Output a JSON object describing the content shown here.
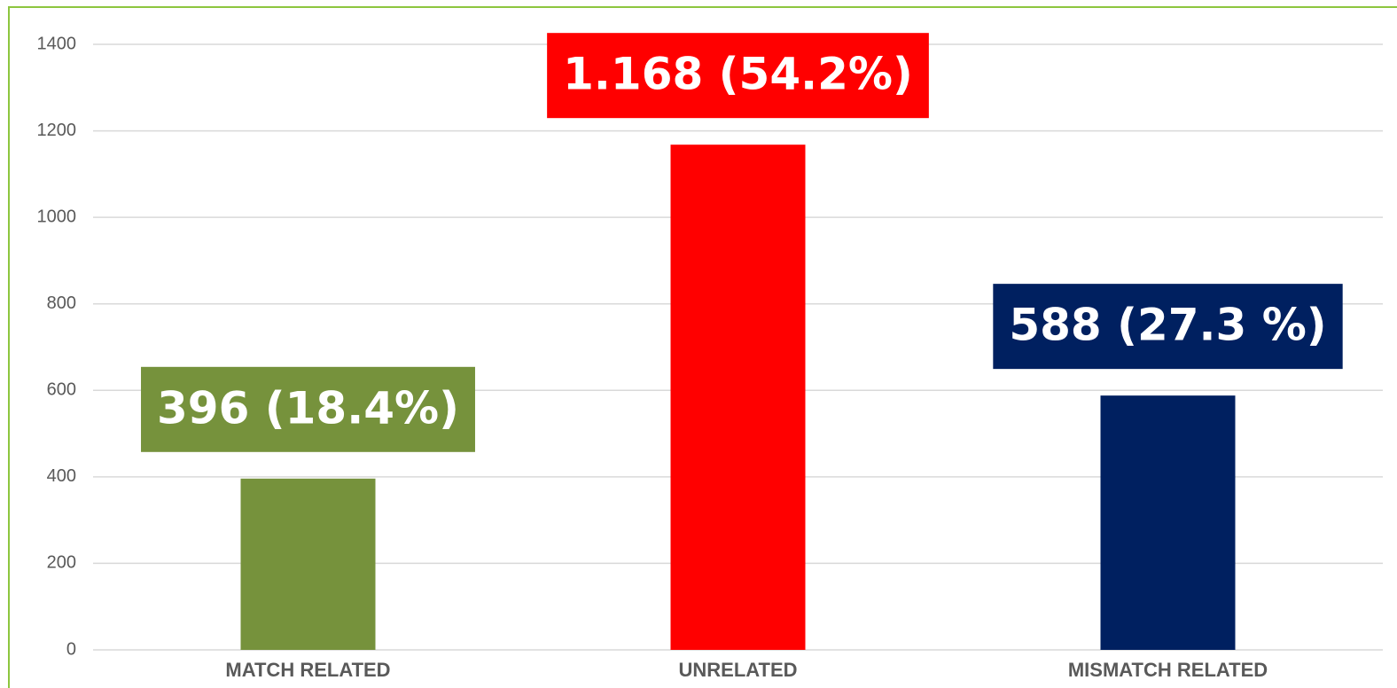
{
  "chart_data": {
    "type": "bar",
    "categories": [
      "MATCH RELATED",
      "UNRELATED",
      "MISMATCH RELATED"
    ],
    "values": [
      396,
      1168,
      588
    ],
    "value_labels": [
      "396 (18.4%)",
      "1.168 (54.2%)",
      "588 (27.3 %)"
    ],
    "colors": [
      "#76923c",
      "#ff0000",
      "#002060"
    ],
    "ylim": [
      0,
      1400
    ],
    "yticks": [
      0,
      200,
      400,
      600,
      800,
      1000,
      1200,
      1400
    ],
    "grid": true
  }
}
